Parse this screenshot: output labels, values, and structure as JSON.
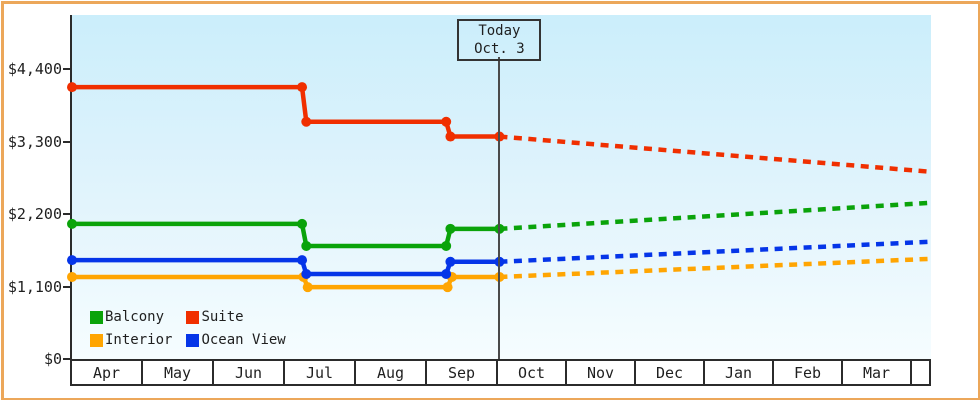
{
  "accent_colors": {
    "frame_border": "#eca75a",
    "axis": "#2b2b2b",
    "plot_gradient_top": "#cbeefb",
    "plot_gradient_bottom": "#f6fdff"
  },
  "chart_data": {
    "type": "line",
    "title": "",
    "xlabel": "",
    "ylabel": "",
    "ylim": [
      0,
      4400
    ],
    "grid": "off",
    "legend_position": "bottom-left-inside",
    "x_axis": {
      "months": [
        "Apr",
        "May",
        "Jun",
        "Jul",
        "Aug",
        "Sep",
        "Oct",
        "Nov",
        "Dec",
        "Jan",
        "Feb",
        "Mar"
      ]
    },
    "y_axis": {
      "ticks": [
        {
          "label": "$4,400",
          "value": 4400
        },
        {
          "label": "$3,300",
          "value": 3300
        },
        {
          "label": "$2,200",
          "value": 2200
        },
        {
          "label": "$1,100",
          "value": 1100
        },
        {
          "label": "$0",
          "value": 0
        }
      ]
    },
    "today": {
      "label_line1": "Today",
      "label_line2": "Oct. 3",
      "month_offset": 6.02
    },
    "series": [
      {
        "name": "Interior",
        "color": "#ffa502",
        "history": [
          {
            "m": 0,
            "v": 1245
          },
          {
            "m": 3.26,
            "v": 1245
          },
          {
            "m": 3.32,
            "v": 1090
          },
          {
            "m": 5.29,
            "v": 1090
          },
          {
            "m": 5.35,
            "v": 1245
          },
          {
            "m": 6.02,
            "v": 1245
          }
        ],
        "forecast_end": {
          "m": 12.1,
          "v": 1520
        }
      },
      {
        "name": "Ocean View",
        "color": "#0535e8",
        "history": [
          {
            "m": 0,
            "v": 1500
          },
          {
            "m": 3.24,
            "v": 1500
          },
          {
            "m": 3.3,
            "v": 1290
          },
          {
            "m": 5.27,
            "v": 1290
          },
          {
            "m": 5.33,
            "v": 1475
          },
          {
            "m": 6.02,
            "v": 1475
          }
        ],
        "forecast_end": {
          "m": 12.1,
          "v": 1780
        }
      },
      {
        "name": "Balcony",
        "color": "#0aa30a",
        "history": [
          {
            "m": 0,
            "v": 2050
          },
          {
            "m": 3.24,
            "v": 2050
          },
          {
            "m": 3.3,
            "v": 1715
          },
          {
            "m": 5.27,
            "v": 1715
          },
          {
            "m": 5.33,
            "v": 1975
          },
          {
            "m": 6.02,
            "v": 1975
          }
        ],
        "forecast_end": {
          "m": 12.1,
          "v": 2370
        }
      },
      {
        "name": "Suite",
        "color": "#f02f00",
        "history": [
          {
            "m": 0,
            "v": 4125
          },
          {
            "m": 3.24,
            "v": 4125
          },
          {
            "m": 3.3,
            "v": 3600
          },
          {
            "m": 5.27,
            "v": 3600
          },
          {
            "m": 5.33,
            "v": 3375
          },
          {
            "m": 6.02,
            "v": 3375
          }
        ],
        "forecast_end": {
          "m": 12.1,
          "v": 2840
        }
      }
    ],
    "legend": [
      {
        "label": "Balcony",
        "color": "#0aa30a"
      },
      {
        "label": "Suite",
        "color": "#f02f00"
      },
      {
        "label": "Interior",
        "color": "#ffa502"
      },
      {
        "label": "Ocean View",
        "color": "#0535e8"
      }
    ]
  }
}
